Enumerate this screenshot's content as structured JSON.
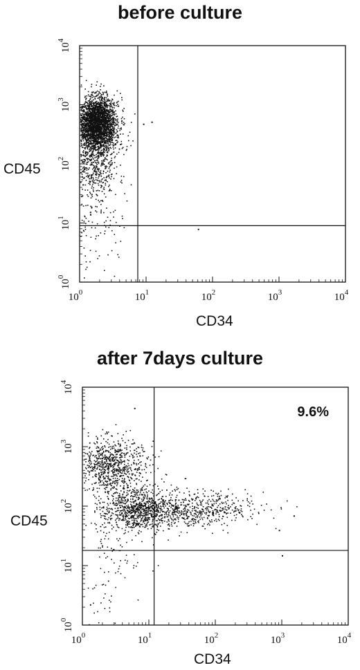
{
  "chart_data": [
    {
      "type": "scatter",
      "title": "before culture",
      "xlabel": "CD34",
      "ylabel": "CD45",
      "x_scale": "log",
      "y_scale": "log",
      "xlim": [
        1,
        10000
      ],
      "ylim": [
        1,
        10000
      ],
      "x_ticks": [
        1,
        10,
        100,
        1000,
        10000
      ],
      "y_ticks": [
        1,
        10,
        100,
        1000,
        10000
      ],
      "tick_labels": {
        "base": "10",
        "exponents": [
          "0",
          "1",
          "2",
          "3",
          "4"
        ]
      },
      "quadrant_gates": {
        "x": 7.5,
        "y": 9
      },
      "annotation": "",
      "grid": false,
      "legend": "none",
      "point_color": "#111111",
      "populations": [
        {
          "center": [
            1.8,
            500
          ],
          "spread_decades": [
            0.15,
            0.22
          ],
          "count": 2600
        },
        {
          "center": [
            1.6,
            150
          ],
          "spread_decades": [
            0.18,
            0.35
          ],
          "count": 650
        },
        {
          "center": [
            2.0,
            30
          ],
          "spread_decades": [
            0.2,
            0.5
          ],
          "count": 120
        },
        {
          "center": [
            1.3,
            3
          ],
          "spread_decades": [
            0.12,
            0.5
          ],
          "count": 40
        }
      ],
      "outliers": [
        [
          12,
          520
        ],
        [
          60,
          8
        ],
        [
          9,
          480
        ]
      ]
    },
    {
      "type": "scatter",
      "title": "after 7days culture",
      "xlabel": "CD34",
      "ylabel": "CD45",
      "x_scale": "log",
      "y_scale": "log",
      "xlim": [
        1,
        10000
      ],
      "ylim": [
        1,
        10000
      ],
      "x_ticks": [
        1,
        10,
        100,
        1000,
        10000
      ],
      "y_ticks": [
        1,
        10,
        100,
        1000,
        10000
      ],
      "tick_labels": {
        "base": "10",
        "exponents": [
          "0",
          "1",
          "2",
          "3",
          "4"
        ]
      },
      "quadrant_gates": {
        "x": 12,
        "y": 18
      },
      "annotation": "9.6%",
      "grid": false,
      "legend": "none",
      "point_color": "#111111",
      "populations": [
        {
          "center": [
            2.5,
            500
          ],
          "spread_decades": [
            0.28,
            0.22
          ],
          "count": 800
        },
        {
          "center": [
            7,
            90
          ],
          "spread_decades": [
            0.3,
            0.18
          ],
          "count": 900
        },
        {
          "center": [
            60,
            90
          ],
          "spread_decades": [
            0.45,
            0.15
          ],
          "count": 500
        },
        {
          "center": [
            3,
            20
          ],
          "spread_decades": [
            0.3,
            0.4
          ],
          "count": 90
        },
        {
          "center": [
            2,
            3
          ],
          "spread_decades": [
            0.2,
            0.35
          ],
          "count": 25
        }
      ],
      "outliers": [
        [
          6,
          4500
        ],
        [
          1000,
          15
        ],
        [
          900,
          40
        ],
        [
          1500,
          70
        ]
      ]
    }
  ]
}
